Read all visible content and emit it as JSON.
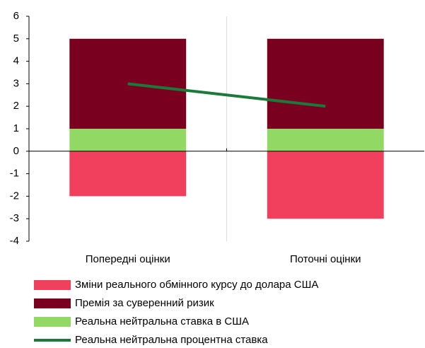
{
  "chart_data": {
    "type": "bar",
    "stacked": true,
    "categories": [
      "Попередні оцінки",
      "Поточні оцінки"
    ],
    "series": [
      {
        "name": "Зміни реального обмінного курсу до долара США",
        "color": "#f0405e",
        "values": [
          -2,
          -3
        ]
      },
      {
        "name": "Премія за суверенний ризик",
        "color": "#7a0020",
        "values": [
          4,
          4
        ]
      },
      {
        "name": "Реальна нейтральна ставка в США",
        "color": "#92d865",
        "values": [
          1,
          1
        ]
      },
      {
        "name": "Реальна нейтральна процентна ставка",
        "color": "#1a7a3a",
        "type": "line",
        "values": [
          3,
          2
        ]
      }
    ],
    "ylim": [
      -4,
      6
    ],
    "yticks": [
      -4,
      -3,
      -2,
      -1,
      0,
      1,
      2,
      3,
      4,
      5,
      6
    ],
    "legend": "bottom"
  }
}
